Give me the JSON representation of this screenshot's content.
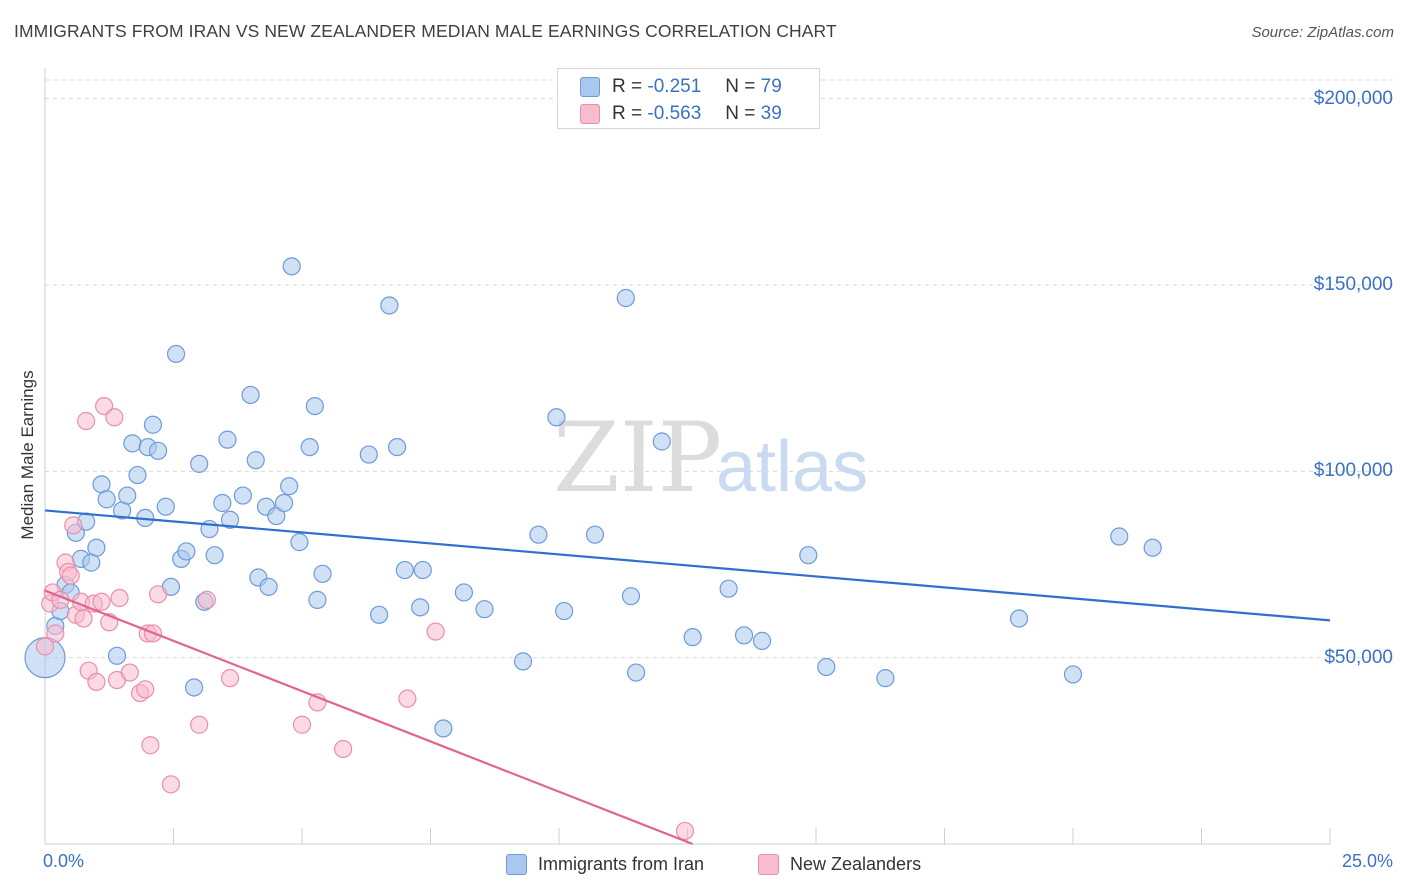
{
  "header": {
    "title": "IMMIGRANTS FROM IRAN VS NEW ZEALANDER MEDIAN MALE EARNINGS CORRELATION CHART",
    "source": "Source: ZipAtlas.com"
  },
  "watermark": {
    "zip": "ZIP",
    "atlas": "atlas"
  },
  "colors": {
    "blue_fill": "#aac8ef",
    "blue_stroke": "#6d9bd8",
    "blue_line": "#2f6fce",
    "pink_fill": "#f7bccd",
    "pink_stroke": "#e98fac",
    "pink_line": "#e0648f",
    "accent_text": "#3a72c4",
    "grid": "#d9d9d9"
  },
  "legend": {
    "rows": [
      {
        "r_label": "R =",
        "r_value": "-0.251",
        "n_label": "N =",
        "n_value": "79"
      },
      {
        "r_label": "R =",
        "r_value": "-0.563",
        "n_label": "N =",
        "n_value": "39"
      }
    ]
  },
  "bottom_legend": {
    "series1": "Immigrants from Iran",
    "series2": "New Zealanders"
  },
  "chart_data": {
    "type": "scatter",
    "title": "IMMIGRANTS FROM IRAN VS NEW ZEALANDER MEDIAN MALE EARNINGS CORRELATION CHART",
    "xlabel": "",
    "ylabel": "Median Male Earnings",
    "xlim": [
      0,
      25
    ],
    "ylim": [
      0,
      205000
    ],
    "x_tick_labels": [
      "0.0%",
      "25.0%"
    ],
    "y_ticks": [
      50000,
      100000,
      150000,
      200000
    ],
    "y_tick_labels": [
      "$50,000",
      "$100,000",
      "$150,000",
      "$200,000"
    ],
    "grid": true,
    "legend_position": "top-center",
    "series": [
      {
        "name": "Immigrants from Iran",
        "r": -0.251,
        "n": 79,
        "trend": {
          "x": [
            0,
            25
          ],
          "y": [
            89500,
            60000
          ]
        },
        "points": [
          {
            "x": 0.0,
            "y": 50000,
            "big": true
          },
          {
            "x": 0.2,
            "y": 58500
          },
          {
            "x": 0.3,
            "y": 62500
          },
          {
            "x": 0.4,
            "y": 69500
          },
          {
            "x": 0.5,
            "y": 67500
          },
          {
            "x": 0.6,
            "y": 83500
          },
          {
            "x": 0.7,
            "y": 76500
          },
          {
            "x": 0.8,
            "y": 86500
          },
          {
            "x": 0.9,
            "y": 75500
          },
          {
            "x": 1.0,
            "y": 79500
          },
          {
            "x": 1.1,
            "y": 96500
          },
          {
            "x": 1.2,
            "y": 92500
          },
          {
            "x": 1.4,
            "y": 50500
          },
          {
            "x": 1.5,
            "y": 89500
          },
          {
            "x": 1.6,
            "y": 93500
          },
          {
            "x": 1.7,
            "y": 107500
          },
          {
            "x": 1.8,
            "y": 99000
          },
          {
            "x": 1.95,
            "y": 87500
          },
          {
            "x": 2.0,
            "y": 106500
          },
          {
            "x": 2.1,
            "y": 112500
          },
          {
            "x": 2.2,
            "y": 105500
          },
          {
            "x": 2.35,
            "y": 90500
          },
          {
            "x": 2.45,
            "y": 69000
          },
          {
            "x": 2.55,
            "y": 131500
          },
          {
            "x": 2.65,
            "y": 76500
          },
          {
            "x": 2.75,
            "y": 78500
          },
          {
            "x": 2.9,
            "y": 42000
          },
          {
            "x": 3.0,
            "y": 102000
          },
          {
            "x": 3.1,
            "y": 65000
          },
          {
            "x": 3.2,
            "y": 84500
          },
          {
            "x": 3.3,
            "y": 77500
          },
          {
            "x": 3.45,
            "y": 91500
          },
          {
            "x": 3.55,
            "y": 108500
          },
          {
            "x": 3.6,
            "y": 87000
          },
          {
            "x": 3.85,
            "y": 93500
          },
          {
            "x": 4.0,
            "y": 120500
          },
          {
            "x": 4.1,
            "y": 103000
          },
          {
            "x": 4.15,
            "y": 71500
          },
          {
            "x": 4.3,
            "y": 90500
          },
          {
            "x": 4.35,
            "y": 69000
          },
          {
            "x": 4.5,
            "y": 88000
          },
          {
            "x": 4.65,
            "y": 91500
          },
          {
            "x": 4.75,
            "y": 96000
          },
          {
            "x": 4.8,
            "y": 155000
          },
          {
            "x": 4.95,
            "y": 81000
          },
          {
            "x": 5.15,
            "y": 106500
          },
          {
            "x": 5.25,
            "y": 117500
          },
          {
            "x": 5.3,
            "y": 65500
          },
          {
            "x": 5.4,
            "y": 72500
          },
          {
            "x": 6.3,
            "y": 104500
          },
          {
            "x": 6.5,
            "y": 61500
          },
          {
            "x": 6.7,
            "y": 144500
          },
          {
            "x": 6.85,
            "y": 106500
          },
          {
            "x": 7.0,
            "y": 73500
          },
          {
            "x": 7.3,
            "y": 63500
          },
          {
            "x": 7.35,
            "y": 73500
          },
          {
            "x": 7.75,
            "y": 31000
          },
          {
            "x": 8.15,
            "y": 67500
          },
          {
            "x": 8.55,
            "y": 63000
          },
          {
            "x": 9.3,
            "y": 49000
          },
          {
            "x": 9.6,
            "y": 83000
          },
          {
            "x": 9.95,
            "y": 114500
          },
          {
            "x": 10.1,
            "y": 62500
          },
          {
            "x": 10.7,
            "y": 83000
          },
          {
            "x": 11.3,
            "y": 146500
          },
          {
            "x": 11.4,
            "y": 66500
          },
          {
            "x": 11.5,
            "y": 46000
          },
          {
            "x": 12.0,
            "y": 108000
          },
          {
            "x": 12.6,
            "y": 55500
          },
          {
            "x": 13.3,
            "y": 68500
          },
          {
            "x": 13.6,
            "y": 56000
          },
          {
            "x": 13.95,
            "y": 54500
          },
          {
            "x": 14.85,
            "y": 77500
          },
          {
            "x": 15.2,
            "y": 47500
          },
          {
            "x": 16.35,
            "y": 44500
          },
          {
            "x": 18.95,
            "y": 60500
          },
          {
            "x": 20.0,
            "y": 45500
          },
          {
            "x": 20.9,
            "y": 82500
          },
          {
            "x": 21.55,
            "y": 79500
          }
        ]
      },
      {
        "name": "New Zealanders",
        "r": -0.563,
        "n": 39,
        "trend": {
          "x": [
            0,
            12.6
          ],
          "y": [
            68000,
            0
          ]
        },
        "points": [
          {
            "x": 0.0,
            "y": 53000
          },
          {
            "x": 0.1,
            "y": 64500
          },
          {
            "x": 0.15,
            "y": 67500
          },
          {
            "x": 0.2,
            "y": 56500
          },
          {
            "x": 0.3,
            "y": 65500
          },
          {
            "x": 0.4,
            "y": 75500
          },
          {
            "x": 0.45,
            "y": 73000
          },
          {
            "x": 0.5,
            "y": 72000
          },
          {
            "x": 0.55,
            "y": 85500
          },
          {
            "x": 0.6,
            "y": 61500
          },
          {
            "x": 0.7,
            "y": 65000
          },
          {
            "x": 0.75,
            "y": 60500
          },
          {
            "x": 0.8,
            "y": 113500
          },
          {
            "x": 0.85,
            "y": 46500
          },
          {
            "x": 0.95,
            "y": 64500
          },
          {
            "x": 1.0,
            "y": 43500
          },
          {
            "x": 1.1,
            "y": 65000
          },
          {
            "x": 1.15,
            "y": 117500
          },
          {
            "x": 1.25,
            "y": 59500
          },
          {
            "x": 1.35,
            "y": 114500
          },
          {
            "x": 1.4,
            "y": 44000
          },
          {
            "x": 1.45,
            "y": 66000
          },
          {
            "x": 1.65,
            "y": 46000
          },
          {
            "x": 1.85,
            "y": 40500
          },
          {
            "x": 1.95,
            "y": 41500
          },
          {
            "x": 2.0,
            "y": 56500
          },
          {
            "x": 2.05,
            "y": 26500
          },
          {
            "x": 2.1,
            "y": 56500
          },
          {
            "x": 2.2,
            "y": 67000
          },
          {
            "x": 2.45,
            "y": 16000
          },
          {
            "x": 3.0,
            "y": 32000
          },
          {
            "x": 3.15,
            "y": 65500
          },
          {
            "x": 3.6,
            "y": 44500
          },
          {
            "x": 5.0,
            "y": 32000
          },
          {
            "x": 5.3,
            "y": 38000
          },
          {
            "x": 5.8,
            "y": 25500
          },
          {
            "x": 7.05,
            "y": 39000
          },
          {
            "x": 7.6,
            "y": 57000
          },
          {
            "x": 12.45,
            "y": 3500
          }
        ]
      }
    ]
  }
}
